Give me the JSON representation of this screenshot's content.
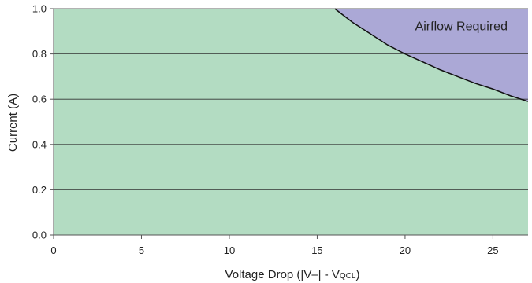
{
  "chart_data": {
    "type": "area",
    "xlabel_main": "Voltage Drop (|V–| - V",
    "xlabel_sub": "QCL",
    "xlabel_end": ")",
    "ylabel": "Current (A)",
    "xlim": [
      0,
      27
    ],
    "ylim": [
      0,
      1.0
    ],
    "x_ticks": [
      0,
      5,
      10,
      15,
      20,
      25
    ],
    "y_ticks": [
      0.0,
      0.2,
      0.4,
      0.6,
      0.8,
      1.0
    ],
    "y_tick_labels": [
      "0.0",
      "0.2",
      "0.4",
      "0.6",
      "0.8",
      "1.0"
    ],
    "grid": "horizontal",
    "boundary": {
      "x": [
        16.0,
        17.0,
        18.0,
        19.0,
        20.0,
        21.0,
        22.0,
        23.0,
        24.0,
        25.0,
        26.0,
        27.0
      ],
      "y": [
        1.0,
        0.94,
        0.89,
        0.84,
        0.8,
        0.765,
        0.73,
        0.7,
        0.67,
        0.645,
        0.615,
        0.59
      ]
    },
    "regions": [
      {
        "name": "",
        "color": "#b3dcc2"
      },
      {
        "name": "Airflow Required",
        "color": "#aba8d6"
      }
    ],
    "annotation": "Airflow Required",
    "colors": {
      "background": "#b3dcc2",
      "airflow": "#aba8d6",
      "grid": "#333333",
      "curve": "#111111",
      "axis": "#555555"
    }
  }
}
